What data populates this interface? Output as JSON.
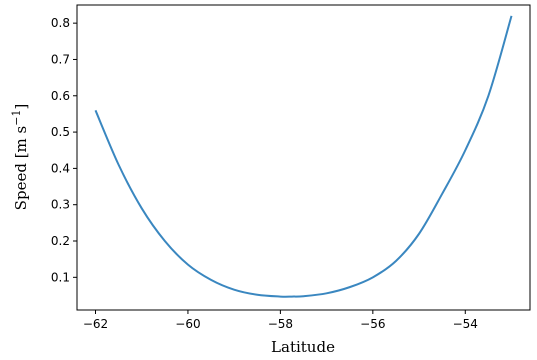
{
  "chart_data": {
    "type": "line",
    "xlabel": "Latitude",
    "ylabel_main": "Speed [m s",
    "ylabel_sup": "−1",
    "ylabel_close": "]",
    "xlim": [
      -62.4,
      -52.6
    ],
    "ylim": [
      0.01,
      0.85
    ],
    "x_ticks": [
      -62,
      -60,
      -58,
      -56,
      -54
    ],
    "x_tick_labels": [
      "−62",
      "−60",
      "−58",
      "−56",
      "−54"
    ],
    "y_ticks": [
      0.1,
      0.2,
      0.3,
      0.4,
      0.5,
      0.6,
      0.7,
      0.8
    ],
    "y_tick_labels": [
      "0.1",
      "0.2",
      "0.3",
      "0.4",
      "0.5",
      "0.6",
      "0.7",
      "0.8"
    ],
    "grid": false,
    "series": [
      {
        "color": "#3a87c0",
        "x": [
          -62.0,
          -61.5,
          -61.0,
          -60.5,
          -60.0,
          -59.5,
          -59.0,
          -58.5,
          -58.0,
          -57.75,
          -57.5,
          -57.0,
          -56.5,
          -56.0,
          -55.5,
          -55.0,
          -54.5,
          -54.0,
          -53.5,
          -53.0
        ],
        "y": [
          0.56,
          0.41,
          0.29,
          0.2,
          0.135,
          0.093,
          0.066,
          0.052,
          0.047,
          0.047,
          0.048,
          0.056,
          0.073,
          0.1,
          0.145,
          0.22,
          0.33,
          0.45,
          0.6,
          0.82
        ]
      }
    ]
  }
}
